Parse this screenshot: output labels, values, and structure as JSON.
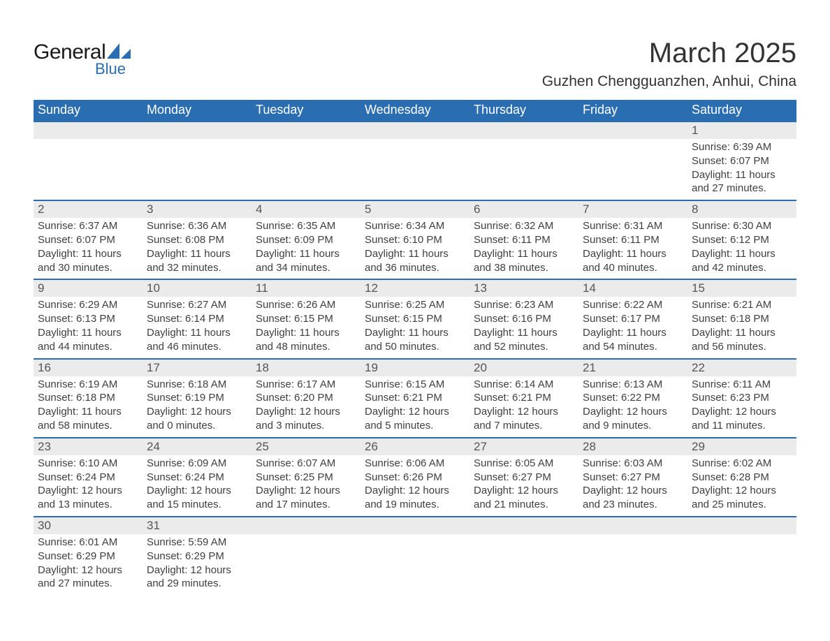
{
  "logo": {
    "text_main": "General",
    "text_sub": "Blue",
    "sail_color": "#2a6db1"
  },
  "title": {
    "month_year": "March 2025",
    "location": "Guzhen Chengguanzhen, Anhui, China"
  },
  "styling": {
    "header_bg": "#2a6db1",
    "header_text": "#ffffff",
    "daynum_bg": "#ebebeb",
    "row_divider": "#2a6db1",
    "body_text": "#3f3f3f",
    "page_bg": "#ffffff",
    "title_fontsize_pt": 40,
    "location_fontsize_pt": 21,
    "header_fontsize_pt": 18,
    "daynum_fontsize_pt": 17,
    "detail_fontsize_pt": 15
  },
  "weekdays": [
    "Sunday",
    "Monday",
    "Tuesday",
    "Wednesday",
    "Thursday",
    "Friday",
    "Saturday"
  ],
  "weeks": [
    {
      "nums": [
        "",
        "",
        "",
        "",
        "",
        "",
        "1"
      ],
      "cells": [
        null,
        null,
        null,
        null,
        null,
        null,
        {
          "sunrise": "Sunrise: 6:39 AM",
          "sunset": "Sunset: 6:07 PM",
          "day1": "Daylight: 11 hours",
          "day2": "and 27 minutes."
        }
      ]
    },
    {
      "nums": [
        "2",
        "3",
        "4",
        "5",
        "6",
        "7",
        "8"
      ],
      "cells": [
        {
          "sunrise": "Sunrise: 6:37 AM",
          "sunset": "Sunset: 6:07 PM",
          "day1": "Daylight: 11 hours",
          "day2": "and 30 minutes."
        },
        {
          "sunrise": "Sunrise: 6:36 AM",
          "sunset": "Sunset: 6:08 PM",
          "day1": "Daylight: 11 hours",
          "day2": "and 32 minutes."
        },
        {
          "sunrise": "Sunrise: 6:35 AM",
          "sunset": "Sunset: 6:09 PM",
          "day1": "Daylight: 11 hours",
          "day2": "and 34 minutes."
        },
        {
          "sunrise": "Sunrise: 6:34 AM",
          "sunset": "Sunset: 6:10 PM",
          "day1": "Daylight: 11 hours",
          "day2": "and 36 minutes."
        },
        {
          "sunrise": "Sunrise: 6:32 AM",
          "sunset": "Sunset: 6:11 PM",
          "day1": "Daylight: 11 hours",
          "day2": "and 38 minutes."
        },
        {
          "sunrise": "Sunrise: 6:31 AM",
          "sunset": "Sunset: 6:11 PM",
          "day1": "Daylight: 11 hours",
          "day2": "and 40 minutes."
        },
        {
          "sunrise": "Sunrise: 6:30 AM",
          "sunset": "Sunset: 6:12 PM",
          "day1": "Daylight: 11 hours",
          "day2": "and 42 minutes."
        }
      ]
    },
    {
      "nums": [
        "9",
        "10",
        "11",
        "12",
        "13",
        "14",
        "15"
      ],
      "cells": [
        {
          "sunrise": "Sunrise: 6:29 AM",
          "sunset": "Sunset: 6:13 PM",
          "day1": "Daylight: 11 hours",
          "day2": "and 44 minutes."
        },
        {
          "sunrise": "Sunrise: 6:27 AM",
          "sunset": "Sunset: 6:14 PM",
          "day1": "Daylight: 11 hours",
          "day2": "and 46 minutes."
        },
        {
          "sunrise": "Sunrise: 6:26 AM",
          "sunset": "Sunset: 6:15 PM",
          "day1": "Daylight: 11 hours",
          "day2": "and 48 minutes."
        },
        {
          "sunrise": "Sunrise: 6:25 AM",
          "sunset": "Sunset: 6:15 PM",
          "day1": "Daylight: 11 hours",
          "day2": "and 50 minutes."
        },
        {
          "sunrise": "Sunrise: 6:23 AM",
          "sunset": "Sunset: 6:16 PM",
          "day1": "Daylight: 11 hours",
          "day2": "and 52 minutes."
        },
        {
          "sunrise": "Sunrise: 6:22 AM",
          "sunset": "Sunset: 6:17 PM",
          "day1": "Daylight: 11 hours",
          "day2": "and 54 minutes."
        },
        {
          "sunrise": "Sunrise: 6:21 AM",
          "sunset": "Sunset: 6:18 PM",
          "day1": "Daylight: 11 hours",
          "day2": "and 56 minutes."
        }
      ]
    },
    {
      "nums": [
        "16",
        "17",
        "18",
        "19",
        "20",
        "21",
        "22"
      ],
      "cells": [
        {
          "sunrise": "Sunrise: 6:19 AM",
          "sunset": "Sunset: 6:18 PM",
          "day1": "Daylight: 11 hours",
          "day2": "and 58 minutes."
        },
        {
          "sunrise": "Sunrise: 6:18 AM",
          "sunset": "Sunset: 6:19 PM",
          "day1": "Daylight: 12 hours",
          "day2": "and 0 minutes."
        },
        {
          "sunrise": "Sunrise: 6:17 AM",
          "sunset": "Sunset: 6:20 PM",
          "day1": "Daylight: 12 hours",
          "day2": "and 3 minutes."
        },
        {
          "sunrise": "Sunrise: 6:15 AM",
          "sunset": "Sunset: 6:21 PM",
          "day1": "Daylight: 12 hours",
          "day2": "and 5 minutes."
        },
        {
          "sunrise": "Sunrise: 6:14 AM",
          "sunset": "Sunset: 6:21 PM",
          "day1": "Daylight: 12 hours",
          "day2": "and 7 minutes."
        },
        {
          "sunrise": "Sunrise: 6:13 AM",
          "sunset": "Sunset: 6:22 PM",
          "day1": "Daylight: 12 hours",
          "day2": "and 9 minutes."
        },
        {
          "sunrise": "Sunrise: 6:11 AM",
          "sunset": "Sunset: 6:23 PM",
          "day1": "Daylight: 12 hours",
          "day2": "and 11 minutes."
        }
      ]
    },
    {
      "nums": [
        "23",
        "24",
        "25",
        "26",
        "27",
        "28",
        "29"
      ],
      "cells": [
        {
          "sunrise": "Sunrise: 6:10 AM",
          "sunset": "Sunset: 6:24 PM",
          "day1": "Daylight: 12 hours",
          "day2": "and 13 minutes."
        },
        {
          "sunrise": "Sunrise: 6:09 AM",
          "sunset": "Sunset: 6:24 PM",
          "day1": "Daylight: 12 hours",
          "day2": "and 15 minutes."
        },
        {
          "sunrise": "Sunrise: 6:07 AM",
          "sunset": "Sunset: 6:25 PM",
          "day1": "Daylight: 12 hours",
          "day2": "and 17 minutes."
        },
        {
          "sunrise": "Sunrise: 6:06 AM",
          "sunset": "Sunset: 6:26 PM",
          "day1": "Daylight: 12 hours",
          "day2": "and 19 minutes."
        },
        {
          "sunrise": "Sunrise: 6:05 AM",
          "sunset": "Sunset: 6:27 PM",
          "day1": "Daylight: 12 hours",
          "day2": "and 21 minutes."
        },
        {
          "sunrise": "Sunrise: 6:03 AM",
          "sunset": "Sunset: 6:27 PM",
          "day1": "Daylight: 12 hours",
          "day2": "and 23 minutes."
        },
        {
          "sunrise": "Sunrise: 6:02 AM",
          "sunset": "Sunset: 6:28 PM",
          "day1": "Daylight: 12 hours",
          "day2": "and 25 minutes."
        }
      ]
    },
    {
      "nums": [
        "30",
        "31",
        "",
        "",
        "",
        "",
        ""
      ],
      "cells": [
        {
          "sunrise": "Sunrise: 6:01 AM",
          "sunset": "Sunset: 6:29 PM",
          "day1": "Daylight: 12 hours",
          "day2": "and 27 minutes."
        },
        {
          "sunrise": "Sunrise: 5:59 AM",
          "sunset": "Sunset: 6:29 PM",
          "day1": "Daylight: 12 hours",
          "day2": "and 29 minutes."
        },
        null,
        null,
        null,
        null,
        null
      ]
    }
  ]
}
